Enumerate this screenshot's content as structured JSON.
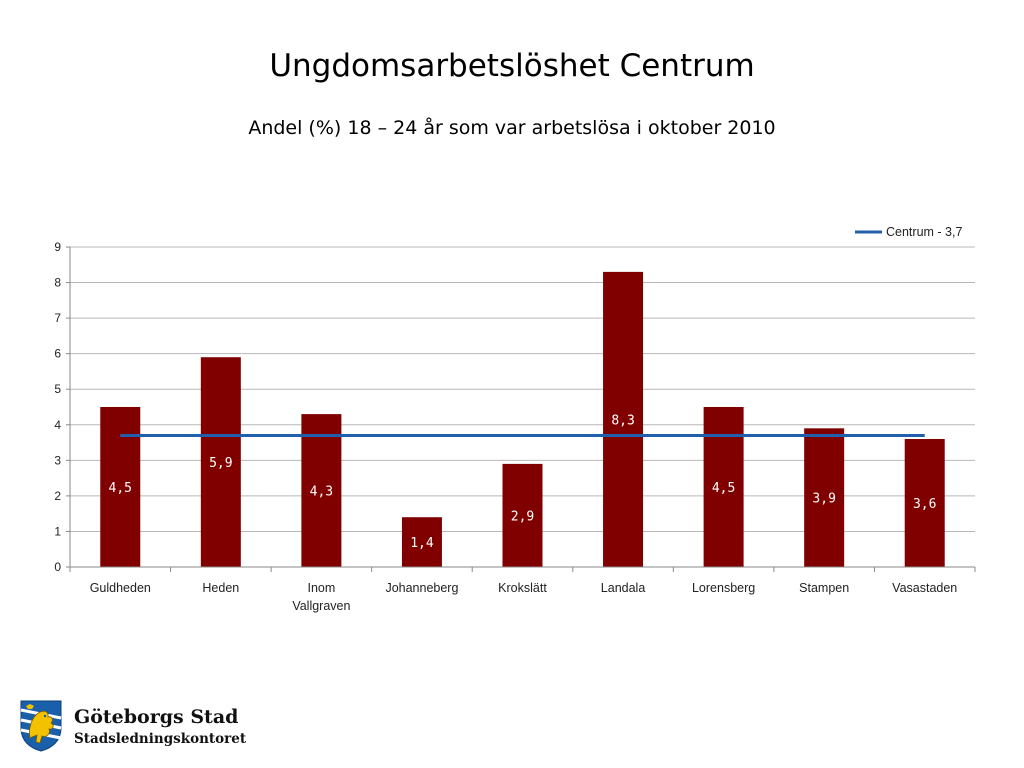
{
  "slide": {
    "title": "Ungdomsarbetslöshet Centrum",
    "subtitle": "Andel (%) 18 – 24 år som var arbetslösa i oktober 2010"
  },
  "chart_data": {
    "type": "bar",
    "categories": [
      "Guldheden",
      "Heden",
      "Inom Vallgraven",
      "Johanneberg",
      "Krokslätt",
      "Landala",
      "Lorensberg",
      "Stampen",
      "Vasastaden"
    ],
    "category_lines": [
      [
        "Guldheden"
      ],
      [
        "Heden"
      ],
      [
        "Inom",
        "Vallgraven"
      ],
      [
        "Johanneberg"
      ],
      [
        "Krokslätt"
      ],
      [
        "Landala"
      ],
      [
        "Lorensberg"
      ],
      [
        "Stampen"
      ],
      [
        "Vasastaden"
      ]
    ],
    "values": [
      4.5,
      5.9,
      4.3,
      1.4,
      2.9,
      8.3,
      4.5,
      3.9,
      3.6
    ],
    "data_labels": [
      "4,5",
      "5,9",
      "4,3",
      "1,4",
      "2,9",
      "8,3",
      "4,5",
      "3,9",
      "3,6"
    ],
    "ylim": [
      0,
      9
    ],
    "yticks": [
      0,
      1,
      2,
      3,
      4,
      5,
      6,
      7,
      8,
      9
    ],
    "grid": true,
    "bar_color": "#800000",
    "reference_line": {
      "value": 3.7,
      "label": "Centrum - 3,7",
      "color": "#1F5FAD"
    },
    "legend_position": "top-right"
  },
  "logo": {
    "name": "Göteborgs Stad",
    "department": "Stadsledningskontoret",
    "colors": {
      "blue": "#1A5FAA",
      "gold": "#F2C200"
    }
  }
}
